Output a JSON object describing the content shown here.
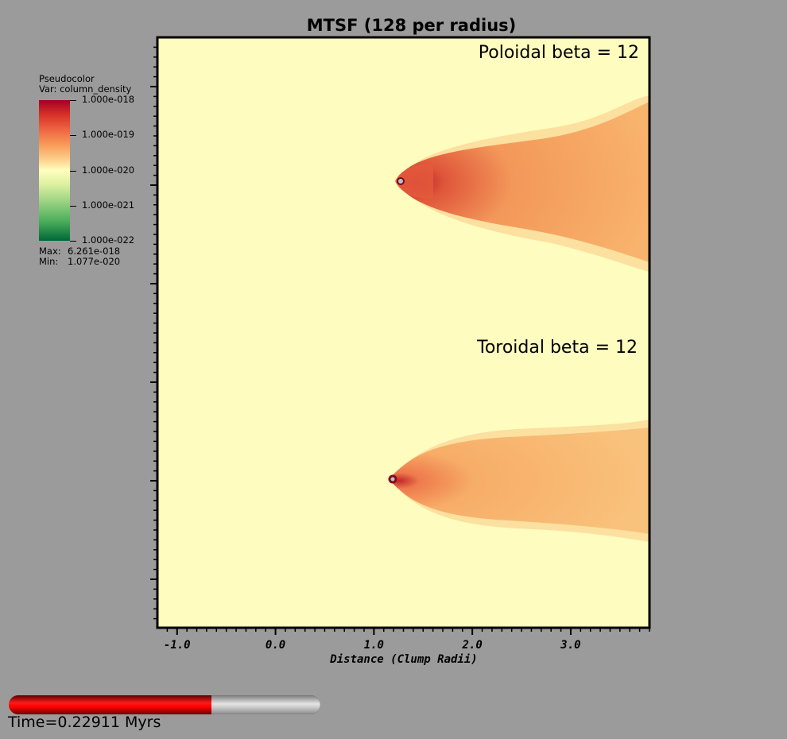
{
  "chart_data": {
    "type": "heatmap",
    "title": "MTSF (128 per radius)",
    "xlabel": "Distance (Clump Radii)",
    "ylabel": "",
    "xlim": [
      -1.2,
      3.8
    ],
    "x_tick_labels": [
      "-1.0",
      "0.0",
      "1.0",
      "2.0",
      "3.0"
    ],
    "x_tick_values": [
      -1.0,
      0.0,
      1.0,
      2.0,
      3.0
    ],
    "y_tick_labels": [],
    "grid": false,
    "panels": [
      {
        "label": "Poloidal beta = 12",
        "clump_x": 1.27
      },
      {
        "label": "Toroidal beta = 12",
        "clump_x": 1.19
      }
    ],
    "legend": {
      "header": [
        "Pseudocolor",
        "Var: column_density"
      ],
      "tick_labels": [
        "1.000e-018",
        "1.000e-019",
        "1.000e-020",
        "1.000e-021",
        "1.000e-022"
      ],
      "max_label": "Max:",
      "max_value": "6.261e-018",
      "min_label": "Min:",
      "min_value": "1.077e-020",
      "placement": "left"
    },
    "colors": {
      "background": "#fefcbe",
      "dense": "#a50026",
      "tail": "#f7b56e",
      "page": "#9b9b9b"
    }
  },
  "time_slider": {
    "progress": 0.65,
    "label": "Time=0.22911 Myrs"
  }
}
